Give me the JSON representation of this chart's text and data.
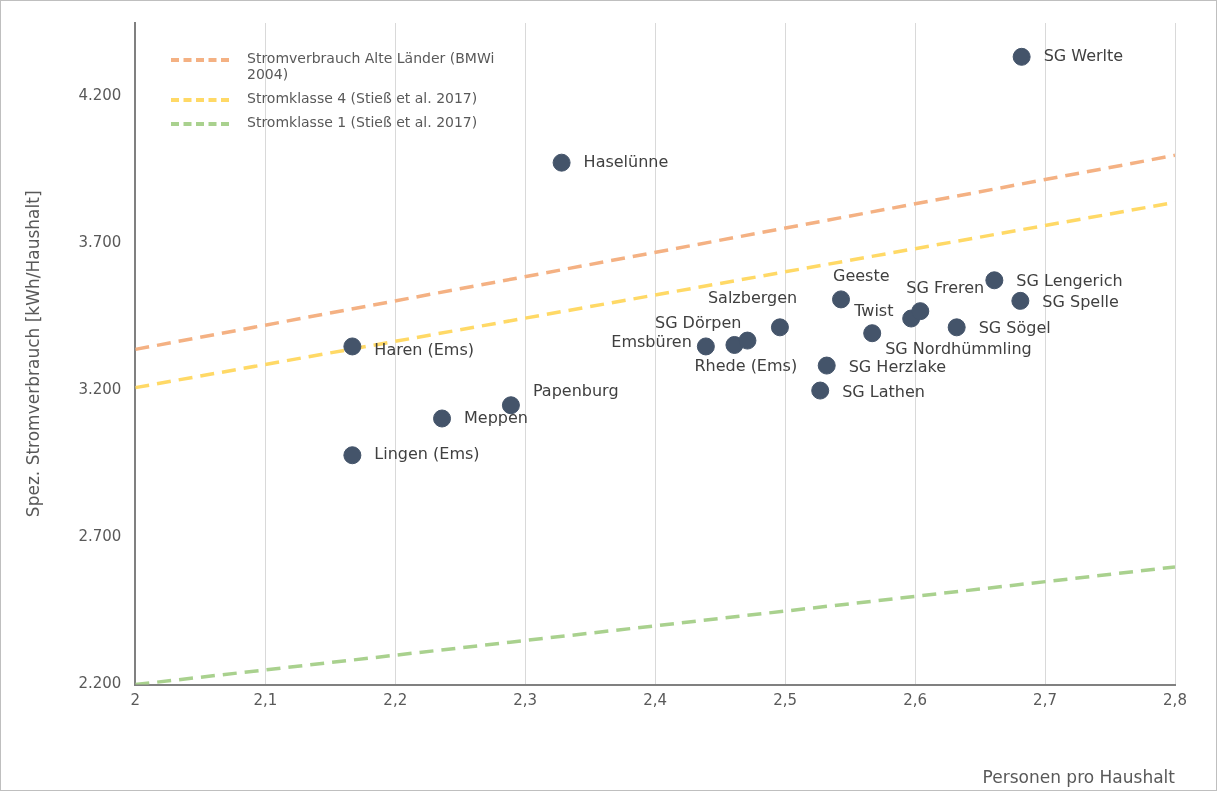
{
  "chart_data": {
    "type": "scatter",
    "xlabel": "Personen pro Haushalt",
    "ylabel": "Spez. Stromverbrauch [kWh/Haushalt]",
    "xlim": [
      2,
      2.8
    ],
    "xticks": [
      {
        "value": 2,
        "label": "2"
      },
      {
        "value": 2.1,
        "label": "2,1"
      },
      {
        "value": 2.2,
        "label": "2,2"
      },
      {
        "value": 2.3,
        "label": "2,3"
      },
      {
        "value": 2.4,
        "label": "2,4"
      },
      {
        "value": 2.5,
        "label": "2,5"
      },
      {
        "value": 2.6,
        "label": "2,6"
      },
      {
        "value": 2.7,
        "label": "2,7"
      },
      {
        "value": 2.8,
        "label": "2,8"
      }
    ],
    "ylim": [
      2200,
      4450
    ],
    "yticks": [
      {
        "value": 2200,
        "label": "2.200"
      },
      {
        "value": 2700,
        "label": "2.700"
      },
      {
        "value": 3200,
        "label": "3.200"
      },
      {
        "value": 3700,
        "label": "3.700"
      },
      {
        "value": 4200,
        "label": "4.200"
      }
    ],
    "grid": "x",
    "legend": "top left",
    "marker": "circle",
    "series": [
      {
        "type": "line",
        "name": "Stromverbrauch Alte Länder (BMWi 2004)",
        "color": "#f4b183",
        "line_style": "dashed",
        "marker": "none",
        "x": [
          2,
          2.8
        ],
        "values": [
          3340,
          4000
        ]
      },
      {
        "type": "line",
        "name": "Stromklasse 4 (Stieß et al. 2017)",
        "color": "#ffd966",
        "line_style": "dashed",
        "marker": "none",
        "x": [
          2,
          2.8
        ],
        "values": [
          3210,
          3840
        ]
      },
      {
        "type": "line",
        "name": "Stromklasse 1 (Stieß et al. 2017)",
        "color": "#a9d18e",
        "line_style": "dashed",
        "marker": "none",
        "x": [
          2,
          2.8
        ],
        "values": [
          2200,
          2600
        ]
      },
      {
        "type": "scatter",
        "color": "#44546a",
        "x": [
          2.682,
          2.328,
          2.167,
          2.167,
          2.236,
          2.289,
          2.439,
          2.461,
          2.471,
          2.496,
          2.527,
          2.532,
          2.543,
          2.567,
          2.597,
          2.604,
          2.632,
          2.661,
          2.681
        ],
        "values": [
          4335,
          3975,
          3350,
          2980,
          3105,
          3150,
          3350,
          3355,
          3370,
          3415,
          3200,
          3285,
          3510,
          3395,
          3445,
          3470,
          3415,
          3575,
          3505
        ]
      }
    ],
    "annotations": [
      {
        "text": "SG Werlte",
        "x": 2.682,
        "y": 4335
      },
      {
        "text": "Haselünne",
        "x": 2.328,
        "y": 3975
      },
      {
        "text": "Haren (Ems)",
        "x": 2.167,
        "y": 3350
      },
      {
        "text": "Lingen (Ems)",
        "x": 2.167,
        "y": 2980
      },
      {
        "text": "Meppen",
        "x": 2.236,
        "y": 3105
      },
      {
        "text": "Papenburg",
        "x": 2.289,
        "y": 3150
      },
      {
        "text": "Emsbüren",
        "x": 2.439,
        "y": 3350
      },
      {
        "text": "Rhede (Ems)",
        "x": 2.461,
        "y": 3355
      },
      {
        "text": "SG Dörpen",
        "x": 2.471,
        "y": 3370
      },
      {
        "text": "Salzbergen",
        "x": 2.496,
        "y": 3415
      },
      {
        "text": "SG Lathen",
        "x": 2.527,
        "y": 3200
      },
      {
        "text": "SG Herzlake",
        "x": 2.532,
        "y": 3285
      },
      {
        "text": "Geeste",
        "x": 2.543,
        "y": 3510
      },
      {
        "text": "Twist",
        "x": 2.567,
        "y": 3395
      },
      {
        "text": "SG Nordhümmling",
        "x": 2.597,
        "y": 3445
      },
      {
        "text": "SG Freren",
        "x": 2.604,
        "y": 3470
      },
      {
        "text": "SG Sögel",
        "x": 2.632,
        "y": 3415
      },
      {
        "text": "SG Lengerich",
        "x": 2.661,
        "y": 3575
      },
      {
        "text": "SG Spelle",
        "x": 2.681,
        "y": 3505
      }
    ]
  }
}
